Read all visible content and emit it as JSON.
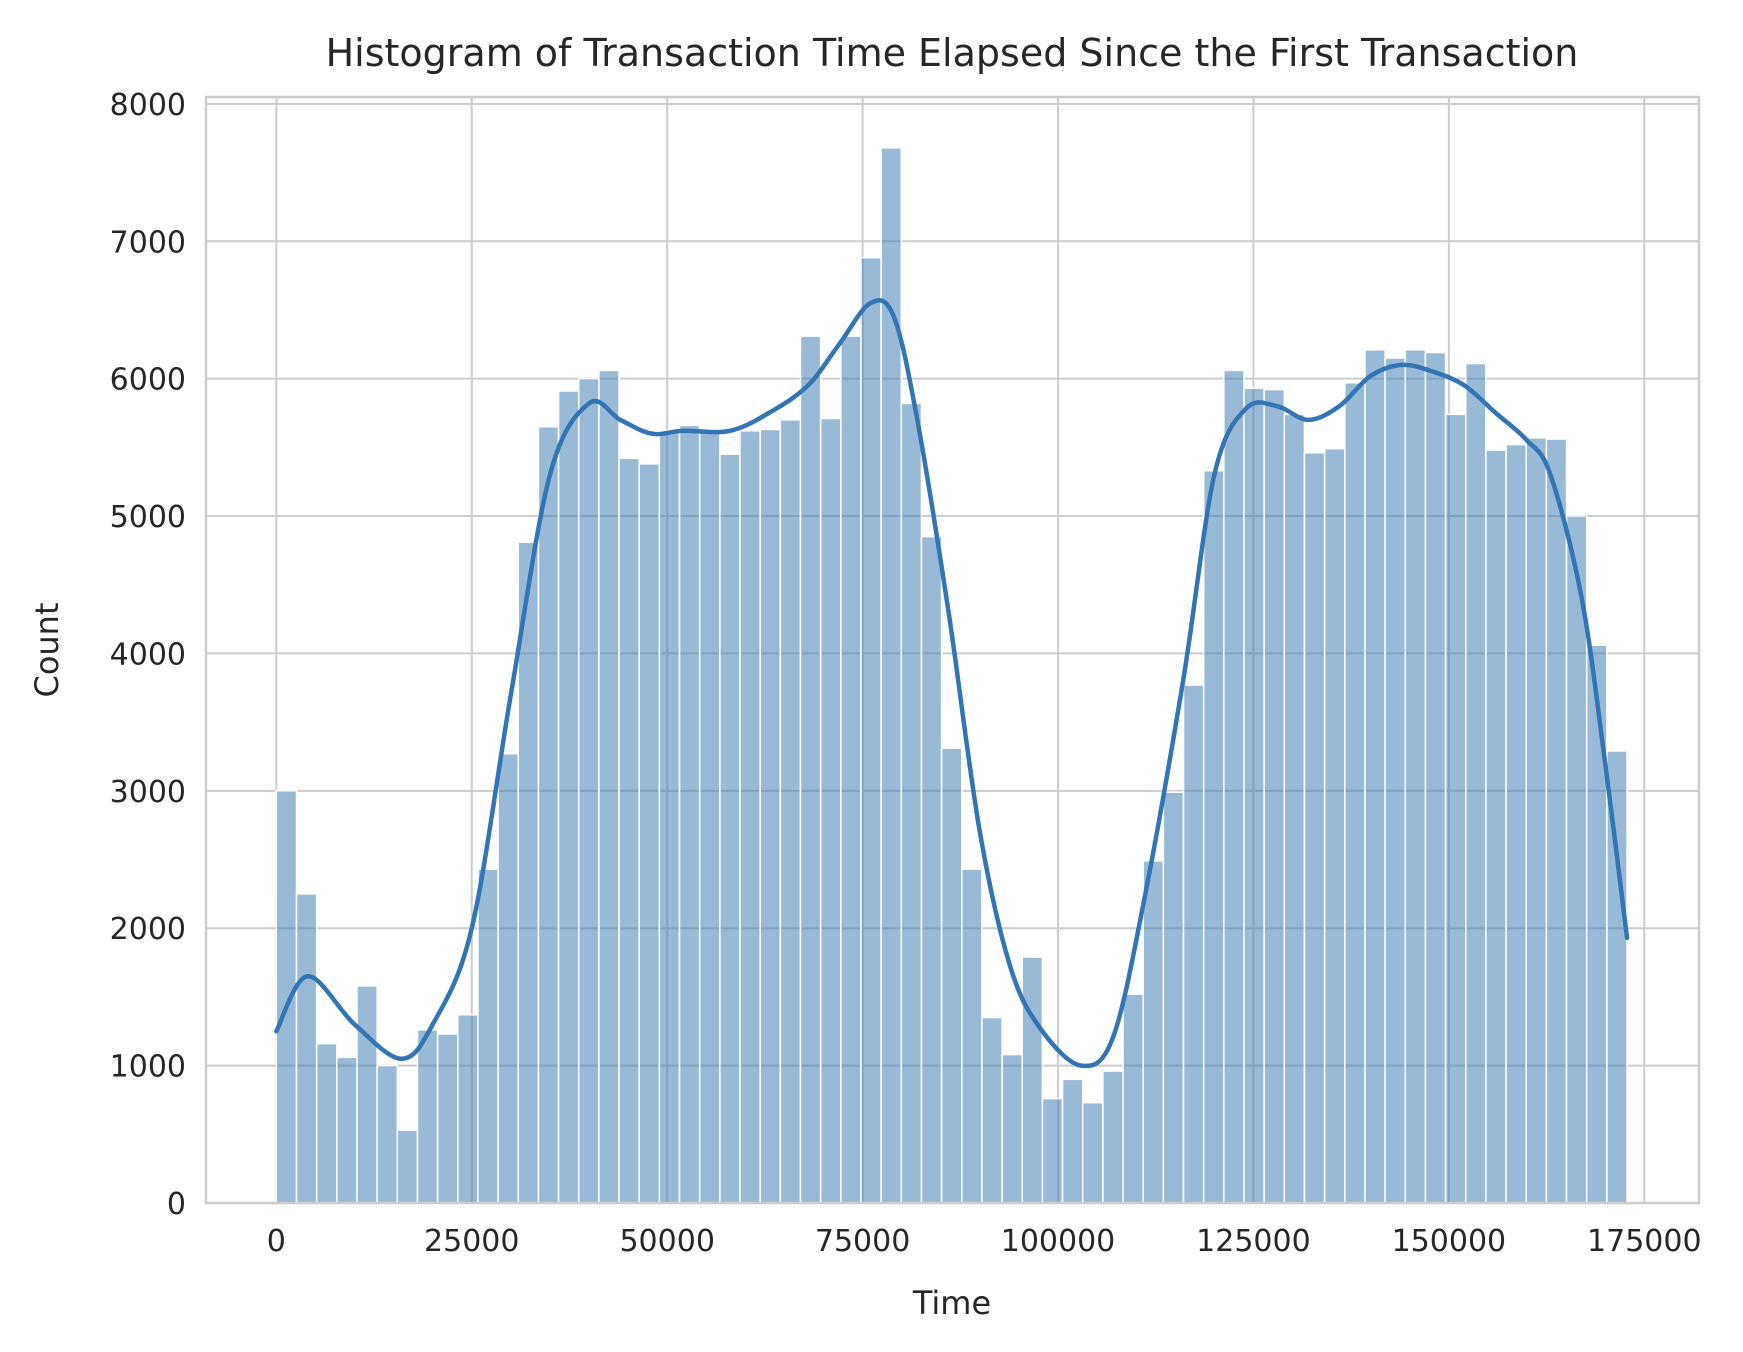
{
  "chart_data": {
    "type": "bar",
    "subtype": "histogram-with-kde",
    "title": "Histogram of Transaction Time Elapsed Since the First Transaction",
    "xlabel": "Time",
    "ylabel": "Count",
    "xlim": [
      -9000,
      182000
    ],
    "ylim": [
      0,
      8050
    ],
    "x_ticks": [
      0,
      25000,
      50000,
      75000,
      100000,
      125000,
      150000,
      175000
    ],
    "y_ticks": [
      0,
      1000,
      2000,
      3000,
      4000,
      5000,
      6000,
      7000,
      8000
    ],
    "grid": true,
    "bar_color": "#4682b4",
    "bar_opacity": 0.55,
    "kde_color": "#3274b4",
    "bins": {
      "start": 0,
      "end": 172792,
      "counts": [
        3000,
        2250,
        1160,
        1060,
        1580,
        1000,
        530,
        1260,
        1230,
        1370,
        2430,
        3270,
        4810,
        5650,
        5910,
        6000,
        6060,
        5420,
        5380,
        5620,
        5660,
        5610,
        5450,
        5620,
        5630,
        5700,
        6310,
        5710,
        6310,
        6880,
        7680,
        5820,
        4850,
        3310,
        2430,
        1350,
        1080,
        1790,
        760,
        900,
        730,
        960,
        1520,
        2490,
        2990,
        3770,
        5330,
        6060,
        5930,
        5920,
        5740,
        5460,
        5490,
        5970,
        6210,
        6150,
        6210,
        6190,
        5740,
        6110,
        5480,
        5520,
        5570,
        5560,
        5000,
        4060,
        3290
      ]
    },
    "kde": [
      [
        0,
        1250
      ],
      [
        4000,
        1650
      ],
      [
        10000,
        1300
      ],
      [
        16000,
        1050
      ],
      [
        20000,
        1300
      ],
      [
        25000,
        2000
      ],
      [
        30000,
        3700
      ],
      [
        35000,
        5300
      ],
      [
        40000,
        5820
      ],
      [
        44000,
        5700
      ],
      [
        48000,
        5600
      ],
      [
        52000,
        5620
      ],
      [
        58000,
        5620
      ],
      [
        63000,
        5750
      ],
      [
        68000,
        5950
      ],
      [
        72000,
        6250
      ],
      [
        76000,
        6550
      ],
      [
        79000,
        6450
      ],
      [
        82000,
        5700
      ],
      [
        86000,
        4300
      ],
      [
        90000,
        2700
      ],
      [
        94000,
        1700
      ],
      [
        98000,
        1250
      ],
      [
        103000,
        1000
      ],
      [
        107000,
        1200
      ],
      [
        111000,
        2200
      ],
      [
        116000,
        3800
      ],
      [
        120000,
        5300
      ],
      [
        124000,
        5780
      ],
      [
        128000,
        5800
      ],
      [
        132000,
        5700
      ],
      [
        136000,
        5800
      ],
      [
        140000,
        6020
      ],
      [
        144000,
        6100
      ],
      [
        148000,
        6050
      ],
      [
        152000,
        5950
      ],
      [
        156000,
        5750
      ],
      [
        160000,
        5550
      ],
      [
        163000,
        5300
      ],
      [
        167000,
        4400
      ],
      [
        170000,
        3200
      ],
      [
        172792,
        1930
      ]
    ]
  }
}
